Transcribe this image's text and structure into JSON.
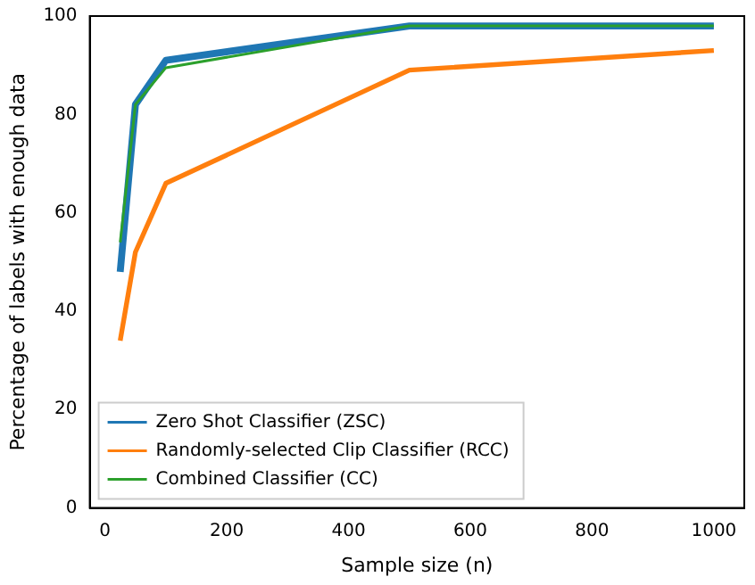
{
  "chart_data": {
    "type": "line",
    "xlabel": "Sample size (n)",
    "ylabel": "Percentage of labels with enough data",
    "x": [
      25,
      50,
      100,
      500,
      1000
    ],
    "series": [
      {
        "name": "Zero Shot Classifier (ZSC)",
        "color": "#1f77b4",
        "values": [
          48,
          82,
          91,
          98,
          98
        ]
      },
      {
        "name": "Randomly-selected Clip Classifier (RCC)",
        "color": "#ff7f0e",
        "values": [
          34,
          52,
          66,
          89,
          93
        ]
      },
      {
        "name": "Combined Classifier (CC)",
        "color": "#2ca02c",
        "values": [
          54,
          82,
          89.5,
          98,
          98
        ]
      }
    ],
    "xlim": [
      -25,
      1050
    ],
    "xticks": [
      0,
      200,
      400,
      600,
      800,
      1000
    ],
    "ylim": [
      0,
      100
    ],
    "yticks": [
      0,
      20,
      40,
      60,
      80,
      100
    ],
    "grid": false,
    "legend": "bottom left",
    "marker": "none",
    "line_style": "solid"
  }
}
